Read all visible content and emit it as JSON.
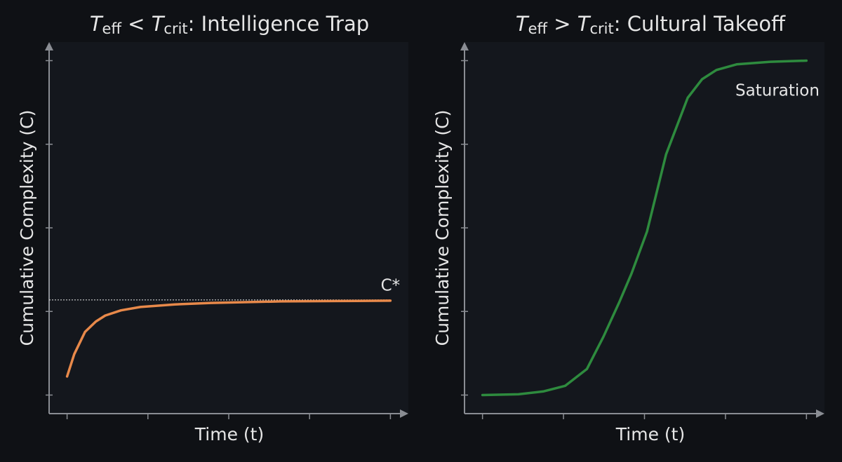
{
  "chart_data": [
    {
      "type": "line",
      "title": [
        "T",
        "eff",
        " < ",
        "T",
        "crit",
        ": Intelligence Trap"
      ],
      "x_label": "Time (t)",
      "y_label": "Cumulative Complexity (C)",
      "x": [
        0.5,
        0.7,
        1.0,
        1.3,
        1.56,
        2.0,
        2.54,
        3.5,
        4.5,
        6.45,
        8.0,
        9.5
      ],
      "series": [
        {
          "color": "#e8894a",
          "values": [
            1.0,
            1.6,
            2.2,
            2.48,
            2.64,
            2.78,
            2.87,
            2.94,
            2.98,
            3.02,
            3.03,
            3.04
          ]
        }
      ],
      "reference_line": {
        "value": 3.06,
        "label": "C*"
      },
      "xlim": [
        0,
        10
      ],
      "ylim": [
        0,
        10
      ],
      "xticks": [
        0.5,
        2.75,
        5,
        7.25,
        9.5
      ],
      "yticks": [
        0.5,
        2.75,
        5,
        7.25,
        9.5
      ]
    },
    {
      "type": "line",
      "title": [
        "T",
        "eff",
        " > ",
        "T",
        "crit",
        ": Cultural Takeoff"
      ],
      "x_label": "Time (t)",
      "y_label": "Cumulative Complexity (C)",
      "x": [
        0.5,
        1.5,
        2.2,
        2.8,
        3.4,
        3.86,
        4.3,
        4.64,
        5.07,
        5.6,
        6.2,
        6.6,
        7.0,
        7.56,
        8.5,
        9.5
      ],
      "series": [
        {
          "color": "#2e8b3e",
          "values": [
            0.5,
            0.52,
            0.6,
            0.75,
            1.2,
            2.07,
            3.0,
            3.77,
            4.9,
            6.98,
            8.5,
            9.0,
            9.25,
            9.4,
            9.47,
            9.5
          ]
        }
      ],
      "annotation": "Saturation",
      "xlim": [
        0,
        10
      ],
      "ylim": [
        0,
        10
      ],
      "xticks": [
        0.5,
        2.75,
        5,
        7.25,
        9.5
      ],
      "yticks": [
        0.5,
        2.75,
        5,
        7.25,
        9.5
      ]
    }
  ]
}
